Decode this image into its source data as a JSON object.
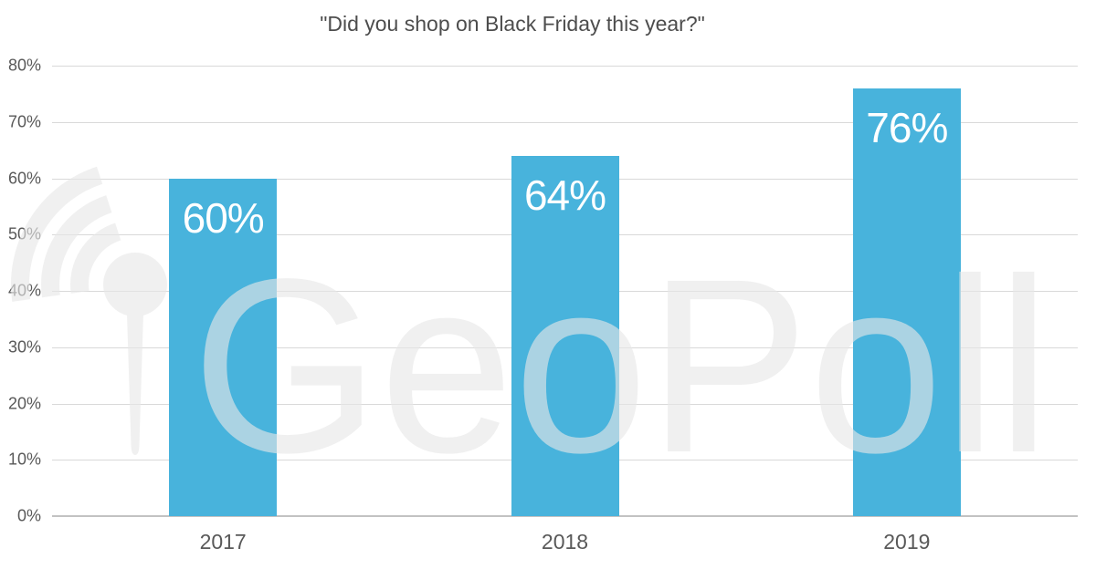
{
  "chart_data": {
    "type": "bar",
    "title": "\"Did you shop on Black Friday this year?\"",
    "categories": [
      "2017",
      "2018",
      "2019"
    ],
    "values": [
      60,
      64,
      76
    ],
    "data_labels": [
      "60%",
      "64%",
      "76%"
    ],
    "ylim": [
      0,
      80
    ],
    "yticks": [
      {
        "value": 0,
        "label": "0%"
      },
      {
        "value": 10,
        "label": "10%"
      },
      {
        "value": 20,
        "label": "20%"
      },
      {
        "value": 30,
        "label": "30%"
      },
      {
        "value": 40,
        "label": "40%"
      },
      {
        "value": 50,
        "label": "50%"
      },
      {
        "value": 60,
        "label": "60%"
      },
      {
        "value": 70,
        "label": "70%"
      },
      {
        "value": 80,
        "label": "80%"
      }
    ],
    "grid": true,
    "legend": false,
    "xlabel": "",
    "ylabel": ""
  },
  "watermark": {
    "text": "GeoPoll",
    "icon": "microphone-signal-icon"
  },
  "colors": {
    "background": "#ffffff",
    "bar": "#48b3dc",
    "bar_label": "#ffffff",
    "title_text": "#4d4d4d",
    "axis_text": "#595959",
    "gridline": "#d9d9d9",
    "axis_line": "#c2c2c2",
    "watermark": "#e8e8e8"
  }
}
